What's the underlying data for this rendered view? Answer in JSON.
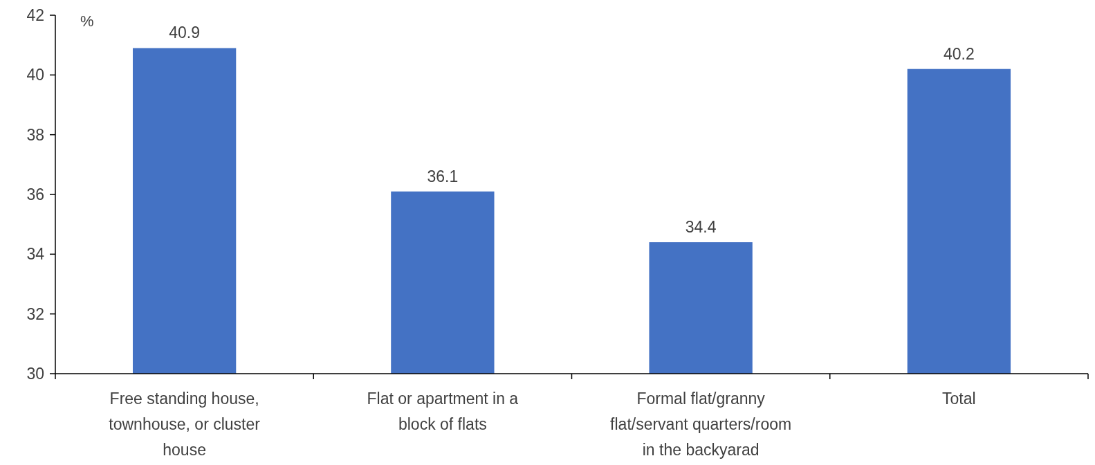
{
  "chart_data": {
    "type": "bar",
    "ylabel": "%",
    "categories": [
      "Free standing house, townhouse, or cluster house",
      "Flat or apartment in a block of flats",
      "Formal flat/granny flat/servant quarters/room in the backyarad",
      "Total"
    ],
    "values": [
      40.9,
      36.1,
      34.4,
      40.2
    ],
    "color": "#4472c4",
    "data_labels": true,
    "ylim": [
      30,
      42
    ],
    "yticks": [
      30,
      32,
      34,
      36,
      38,
      40,
      42
    ],
    "grid": false
  }
}
